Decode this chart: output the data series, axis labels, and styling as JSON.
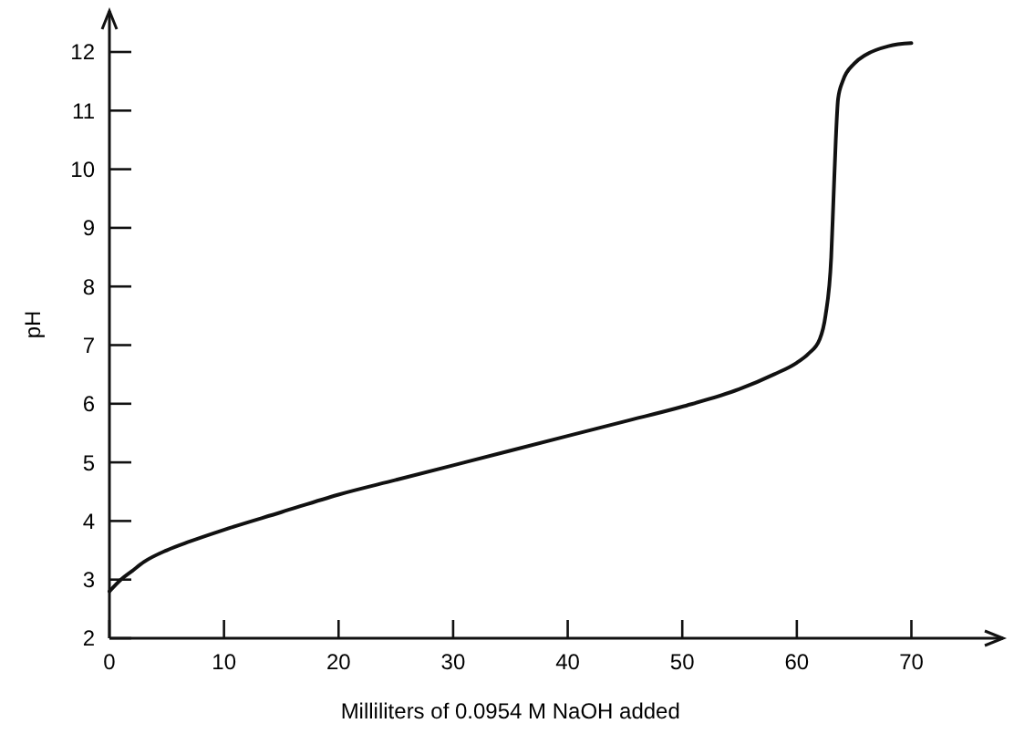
{
  "chart_data": {
    "type": "line",
    "xlabel": "Milliliters of 0.0954 M NaOH added",
    "ylabel": "pH",
    "x": [
      0,
      1,
      2,
      3,
      5,
      7,
      10,
      15,
      20,
      25,
      30,
      35,
      40,
      45,
      50,
      55,
      58,
      60,
      61,
      62,
      62.5,
      63,
      63.2,
      63.4,
      63.6,
      64,
      65,
      66,
      68,
      70
    ],
    "series": [
      {
        "color": "#111111",
        "values": [
          2.8,
          3.0,
          3.15,
          3.3,
          3.5,
          3.65,
          3.85,
          4.15,
          4.45,
          4.7,
          4.95,
          5.2,
          5.45,
          5.7,
          5.95,
          6.25,
          6.5,
          6.7,
          6.85,
          7.1,
          7.5,
          8.5,
          9.5,
          10.5,
          11.2,
          11.5,
          11.8,
          11.95,
          12.1,
          12.15
        ]
      }
    ],
    "xlim": [
      0,
      78
    ],
    "ylim": [
      2,
      12.7
    ],
    "xticks": [
      0,
      10,
      20,
      30,
      40,
      50,
      60,
      70
    ],
    "yticks": [
      2,
      3,
      4,
      5,
      6,
      7,
      8,
      9,
      10,
      11,
      12
    ],
    "grid": false,
    "marker": "none",
    "line_style": "solid"
  }
}
